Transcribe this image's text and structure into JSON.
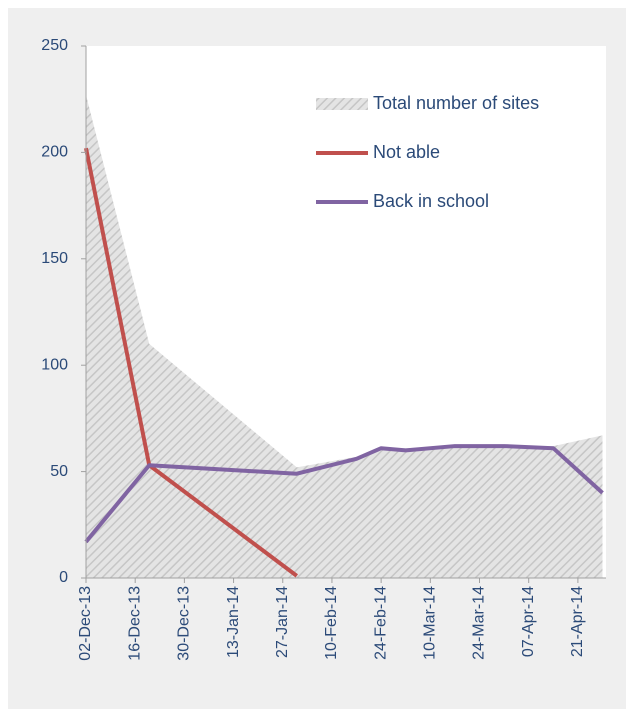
{
  "chart_data": {
    "type": "line",
    "x": [
      "2013-12-02",
      "2013-12-20",
      "2014-01-31",
      "2014-02-17",
      "2014-02-24",
      "2014-03-03",
      "2014-03-17",
      "2014-03-31",
      "2014-04-14",
      "2014-04-28"
    ],
    "series": [
      {
        "name": "Total number of sites",
        "type": "area",
        "color": "#d0d0d0",
        "values": [
          227,
          110,
          52,
          57,
          61,
          61,
          62,
          62,
          62,
          67
        ]
      },
      {
        "name": "Not able",
        "type": "line",
        "color": "#c0504d",
        "values": [
          202,
          53,
          1,
          null,
          null,
          null,
          null,
          null,
          null,
          null
        ]
      },
      {
        "name": "Back in school",
        "type": "line",
        "color": "#8064a2",
        "values": [
          17,
          53,
          49,
          56,
          61,
          60,
          62,
          62,
          61,
          40
        ]
      }
    ],
    "xlim": [
      "2013-12-02",
      "2014-04-29"
    ],
    "xticks": [
      {
        "value": "2013-12-02",
        "label": "02-Dec-13"
      },
      {
        "value": "2013-12-16",
        "label": "16-Dec-13"
      },
      {
        "value": "2013-12-30",
        "label": "30-Dec-13"
      },
      {
        "value": "2014-01-13",
        "label": "13-Jan-14"
      },
      {
        "value": "2014-01-27",
        "label": "27-Jan-14"
      },
      {
        "value": "2014-02-10",
        "label": "10-Feb-14"
      },
      {
        "value": "2014-02-24",
        "label": "24-Feb-14"
      },
      {
        "value": "2014-03-10",
        "label": "10-Mar-14"
      },
      {
        "value": "2014-03-24",
        "label": "24-Mar-14"
      },
      {
        "value": "2014-04-07",
        "label": "07-Apr-14"
      },
      {
        "value": "2014-04-21",
        "label": "21-Apr-14"
      }
    ],
    "ylim": [
      0,
      250
    ],
    "yticks": [
      0,
      50,
      100,
      150,
      200,
      250
    ],
    "grid": false,
    "legend": "upper right"
  }
}
